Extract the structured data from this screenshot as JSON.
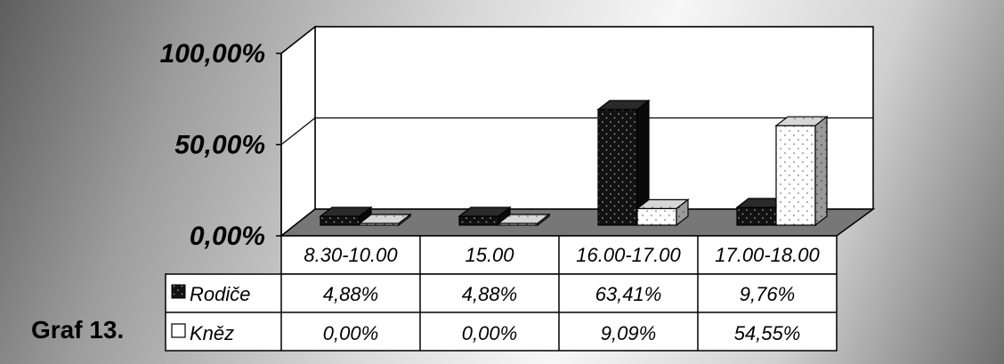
{
  "caption": "Graf 13.",
  "chart_data": {
    "type": "bar",
    "categories": [
      "8.30-10.00",
      "15.00",
      "16.00-17.00",
      "17.00-18.00"
    ],
    "series": [
      {
        "name": "Rodiče",
        "values": [
          4.88,
          4.88,
          63.41,
          9.76
        ],
        "labels": [
          "4,88%",
          "4,88%",
          "63,41%",
          "9,76%"
        ],
        "color": "#111111",
        "pattern": "dark-dotted"
      },
      {
        "name": "Kněz",
        "values": [
          0.0,
          0.0,
          9.09,
          54.55
        ],
        "labels": [
          "0,00%",
          "0,00%",
          "9,09%",
          "54,55%"
        ],
        "color": "#ffffff",
        "pattern": "light-dotted"
      }
    ],
    "ylim": [
      0,
      100
    ],
    "yticks": [
      0,
      50,
      100
    ],
    "ytick_labels": [
      "0,00%",
      "50,00%",
      "100,00%"
    ],
    "grid": true,
    "three_d": true,
    "data_table": true,
    "legend": "data-table-left"
  }
}
